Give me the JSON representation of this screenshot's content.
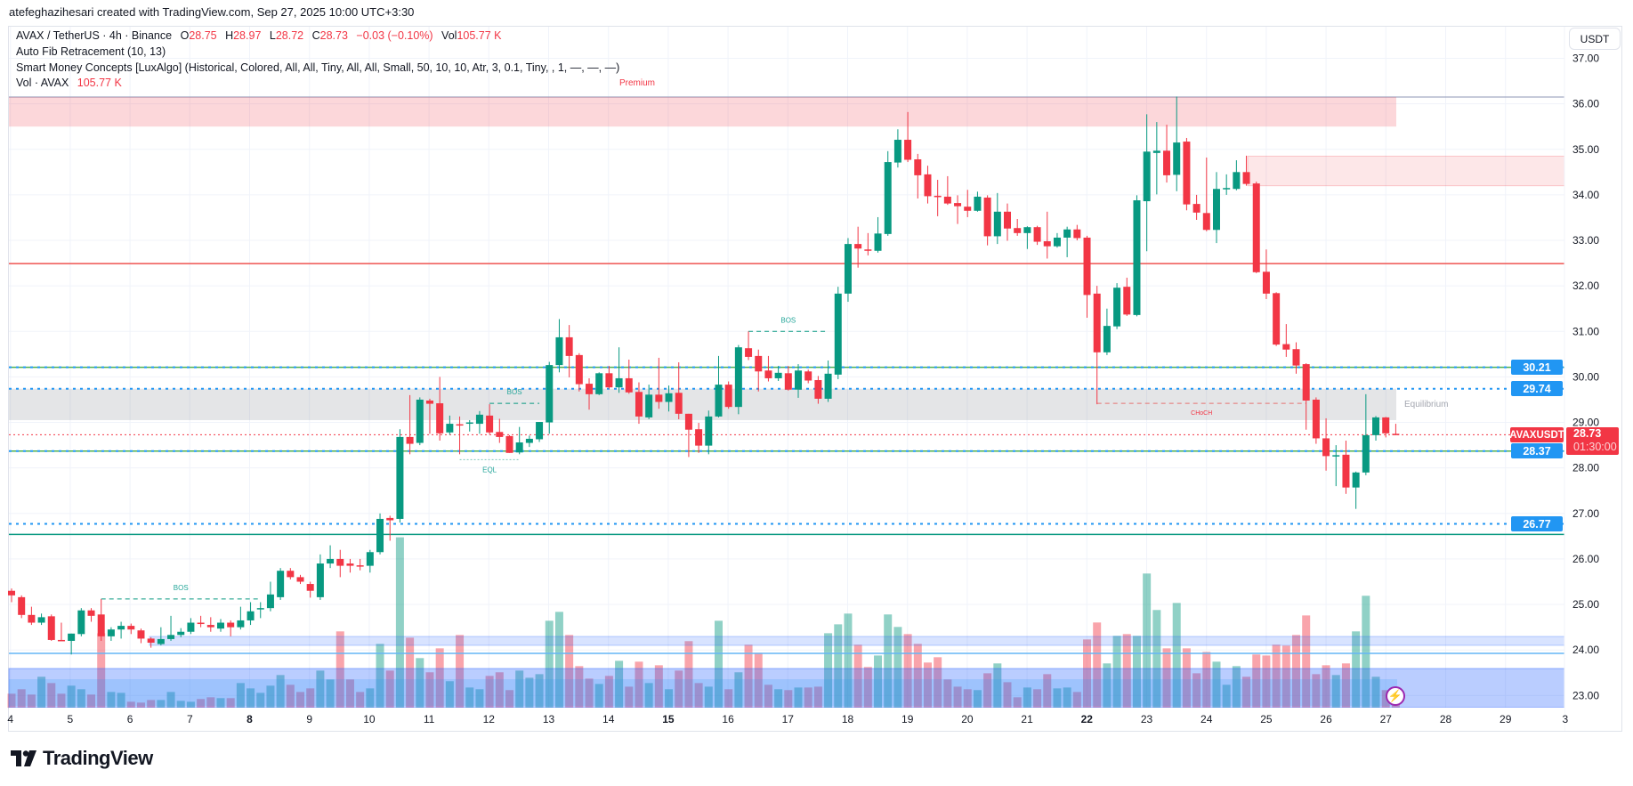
{
  "credit": "atefeghazihesari created with TradingView.com, Sep 27, 2025 10:00 UTC+3:30",
  "legend": {
    "symbol": "AVAX / TetherUS · 4h · Binance",
    "o_label": "O",
    "o": "28.75",
    "h_label": "H",
    "h": "28.97",
    "l_label": "L",
    "l": "28.72",
    "c_label": "C",
    "c": "28.73",
    "change": "−0.03 (−0.10%)",
    "vol_label": "Vol",
    "vol": "105.77 K",
    "fib": "Auto Fib Retracement (10, 13)",
    "smc": "Smart Money Concepts [LuxAlgo] (Historical, Colored, All, All, Tiny, All, All, Small, 50, 10, 10, Atr, 3, 0.1, Tiny, , 1, —, —, —)",
    "vol_study": "Vol · AVAX",
    "vol_study_value": "105.77 K"
  },
  "currency_button": "USDT",
  "price_axis": {
    "ticks": [
      "37.00",
      "36.00",
      "35.00",
      "34.00",
      "33.00",
      "32.00",
      "31.00",
      "30.00",
      "29.00",
      "28.00",
      "27.00",
      "26.00",
      "25.00",
      "24.00",
      "23.00"
    ],
    "tags": [
      {
        "label": "30.21",
        "value": 30.21
      },
      {
        "label": "29.74",
        "value": 29.74
      },
      {
        "label": "28.37",
        "value": 28.37
      },
      {
        "label": "26.77",
        "value": 26.77
      }
    ],
    "current_symbol": "AVAXUSDT",
    "current_price": "28.73",
    "countdown": "01:30:00"
  },
  "time_axis": [
    "4",
    "5",
    "6",
    "7",
    "8",
    "9",
    "10",
    "11",
    "12",
    "13",
    "14",
    "15",
    "16",
    "17",
    "18",
    "19",
    "20",
    "21",
    "22",
    "23",
    "24",
    "25",
    "26",
    "27",
    "28",
    "29",
    "3"
  ],
  "annotations": {
    "premium": "Premium",
    "equilibrium": "Equilibrium",
    "bos": "BOS",
    "eql": "EQL",
    "choch": "CHoCH"
  },
  "levels": {
    "premium_zone": [
      35.5,
      36.15
    ],
    "supply_zone": [
      34.2,
      34.85
    ],
    "equilibrium_zone": [
      29.05,
      29.74
    ],
    "fib_lines": [
      32.49,
      30.21,
      28.37,
      26.54
    ],
    "dotted_lines": [
      30.21,
      29.74,
      28.37,
      26.77
    ],
    "current": 28.73,
    "bos": [
      {
        "price": 25.12,
        "from": 9,
        "to": 25
      },
      {
        "price": 29.42,
        "from": 48,
        "to": 53
      },
      {
        "price": 31.0,
        "from": 74,
        "to": 82
      }
    ],
    "eql": {
      "price": 28.3,
      "from": 45,
      "to": 51
    },
    "choch": {
      "price": 29.42,
      "from": 109,
      "to": 130
    }
  },
  "colors": {
    "up": "#089981",
    "down": "#f23645",
    "tag": "#2196f3",
    "grid": "#f0f3fa"
  },
  "brand": "TradingView",
  "chart_data": {
    "type": "candlestick",
    "title": "AVAX / TetherUS · 4h · Binance",
    "ylim": [
      22.7,
      37.2
    ],
    "x_start": "Sep 4",
    "interval": "4h",
    "candles": [
      [
        25.3,
        25.35,
        25.05,
        25.2
      ],
      [
        25.16,
        25.2,
        24.7,
        24.77
      ],
      [
        24.77,
        24.95,
        24.55,
        24.6
      ],
      [
        24.6,
        24.8,
        24.55,
        24.72
      ],
      [
        24.74,
        24.78,
        24.2,
        24.22
      ],
      [
        24.22,
        24.6,
        24.2,
        24.21
      ],
      [
        24.2,
        24.36,
        23.9,
        24.36
      ],
      [
        24.35,
        24.92,
        24.3,
        24.87
      ],
      [
        24.87,
        24.92,
        24.62,
        24.75
      ],
      [
        24.78,
        25.12,
        24.2,
        24.3
      ],
      [
        24.3,
        24.5,
        24.2,
        24.45
      ],
      [
        24.45,
        24.62,
        24.25,
        24.53
      ],
      [
        24.53,
        24.58,
        24.35,
        24.45
      ],
      [
        24.43,
        24.47,
        24.15,
        24.25
      ],
      [
        24.25,
        24.28,
        24.05,
        24.16
      ],
      [
        24.13,
        24.5,
        24.1,
        24.24
      ],
      [
        24.24,
        24.75,
        24.2,
        24.33
      ],
      [
        24.33,
        24.48,
        24.28,
        24.4
      ],
      [
        24.4,
        24.7,
        24.35,
        24.6
      ],
      [
        24.6,
        24.75,
        24.5,
        24.57
      ],
      [
        24.55,
        24.72,
        24.4,
        24.5
      ],
      [
        24.47,
        24.68,
        24.4,
        24.6
      ],
      [
        24.6,
        24.65,
        24.3,
        24.5
      ],
      [
        24.5,
        24.95,
        24.45,
        24.65
      ],
      [
        24.65,
        25.05,
        24.55,
        24.85
      ],
      [
        24.92,
        25.05,
        24.7,
        24.92
      ],
      [
        24.92,
        25.5,
        24.85,
        25.22
      ],
      [
        25.16,
        25.8,
        25.1,
        25.74
      ],
      [
        25.74,
        25.8,
        25.55,
        25.6
      ],
      [
        25.6,
        25.65,
        25.45,
        25.5
      ],
      [
        25.45,
        25.5,
        25.15,
        25.3
      ],
      [
        25.16,
        26.1,
        25.1,
        25.9
      ],
      [
        25.9,
        26.3,
        25.8,
        26.0
      ],
      [
        26.0,
        26.2,
        25.6,
        25.85
      ],
      [
        25.9,
        26.0,
        25.7,
        25.85
      ],
      [
        25.86,
        26.0,
        25.75,
        25.85
      ],
      [
        25.85,
        26.2,
        25.7,
        26.15
      ],
      [
        26.15,
        27.0,
        26.1,
        26.88
      ],
      [
        26.9,
        26.95,
        26.4,
        26.85
      ],
      [
        26.88,
        28.85,
        26.8,
        28.68
      ],
      [
        28.68,
        29.6,
        28.3,
        28.53
      ],
      [
        28.55,
        29.55,
        28.5,
        29.5
      ],
      [
        29.48,
        29.52,
        28.75,
        29.41
      ],
      [
        29.42,
        30.0,
        28.6,
        28.76
      ],
      [
        28.78,
        29.15,
        28.73,
        28.97
      ],
      [
        28.96,
        29.13,
        28.3,
        28.94
      ],
      [
        28.98,
        29.05,
        28.8,
        29.0
      ],
      [
        28.97,
        29.25,
        28.75,
        29.17
      ],
      [
        29.15,
        29.4,
        28.74,
        28.78
      ],
      [
        28.79,
        29.08,
        28.55,
        28.68
      ],
      [
        28.7,
        28.72,
        28.33,
        28.33
      ],
      [
        28.34,
        28.9,
        28.3,
        28.56
      ],
      [
        28.55,
        28.71,
        28.46,
        28.64
      ],
      [
        28.63,
        29.01,
        28.57,
        29.01
      ],
      [
        29.0,
        30.33,
        28.75,
        30.26
      ],
      [
        30.26,
        31.27,
        30.1,
        30.87
      ],
      [
        30.87,
        31.14,
        29.99,
        30.46
      ],
      [
        30.48,
        30.52,
        29.68,
        29.84
      ],
      [
        29.85,
        29.97,
        29.28,
        29.62
      ],
      [
        29.62,
        30.1,
        29.6,
        30.08
      ],
      [
        30.08,
        30.24,
        29.74,
        29.77
      ],
      [
        29.77,
        30.65,
        29.65,
        29.97
      ],
      [
        29.97,
        30.38,
        29.63,
        29.66
      ],
      [
        29.67,
        29.88,
        28.97,
        29.13
      ],
      [
        29.11,
        29.83,
        29.07,
        29.61
      ],
      [
        29.61,
        30.42,
        29.3,
        29.45
      ],
      [
        29.45,
        29.81,
        29.24,
        29.64
      ],
      [
        29.65,
        30.32,
        29.07,
        29.19
      ],
      [
        29.19,
        29.19,
        28.24,
        28.84
      ],
      [
        28.85,
        28.99,
        28.33,
        28.49
      ],
      [
        28.49,
        29.26,
        28.3,
        29.13
      ],
      [
        29.13,
        30.46,
        29.11,
        29.83
      ],
      [
        29.83,
        29.9,
        29.3,
        29.34
      ],
      [
        29.34,
        30.7,
        29.18,
        30.65
      ],
      [
        30.63,
        31.0,
        30.37,
        30.44
      ],
      [
        30.46,
        30.6,
        29.68,
        30.12
      ],
      [
        30.14,
        30.46,
        29.9,
        29.97
      ],
      [
        29.97,
        30.24,
        29.91,
        30.09
      ],
      [
        30.08,
        30.24,
        29.7,
        29.72
      ],
      [
        29.72,
        30.28,
        29.54,
        30.14
      ],
      [
        30.12,
        30.16,
        29.86,
        29.92
      ],
      [
        29.93,
        30.02,
        29.41,
        29.52
      ],
      [
        29.52,
        30.36,
        29.45,
        30.07
      ],
      [
        30.05,
        31.98,
        29.95,
        31.83
      ],
      [
        31.83,
        33.05,
        31.65,
        32.92
      ],
      [
        32.92,
        33.3,
        32.4,
        32.82
      ],
      [
        32.8,
        33.16,
        32.67,
        32.77
      ],
      [
        32.77,
        33.51,
        32.73,
        33.15
      ],
      [
        33.14,
        34.96,
        33.1,
        34.72
      ],
      [
        34.71,
        35.44,
        34.6,
        35.21
      ],
      [
        35.21,
        35.82,
        34.72,
        34.77
      ],
      [
        34.78,
        34.9,
        33.92,
        34.43
      ],
      [
        34.45,
        34.64,
        33.81,
        33.97
      ],
      [
        33.98,
        34.33,
        33.53,
        33.95
      ],
      [
        33.96,
        34.41,
        33.78,
        33.81
      ],
      [
        33.82,
        33.99,
        33.36,
        33.75
      ],
      [
        33.74,
        34.11,
        33.51,
        33.65
      ],
      [
        33.65,
        34.07,
        33.63,
        33.96
      ],
      [
        33.94,
        33.99,
        32.89,
        33.09
      ],
      [
        33.09,
        34.04,
        32.92,
        33.63
      ],
      [
        33.63,
        33.81,
        32.99,
        33.26
      ],
      [
        33.27,
        33.47,
        33.1,
        33.16
      ],
      [
        33.16,
        33.31,
        32.81,
        33.29
      ],
      [
        33.29,
        33.32,
        32.9,
        32.97
      ],
      [
        32.98,
        33.63,
        32.6,
        32.87
      ],
      [
        32.87,
        33.16,
        32.84,
        33.06
      ],
      [
        33.06,
        33.3,
        32.63,
        33.24
      ],
      [
        33.24,
        33.34,
        33.0,
        33.05
      ],
      [
        33.06,
        33.1,
        31.3,
        31.8
      ],
      [
        31.83,
        32.0,
        29.4,
        30.54
      ],
      [
        30.54,
        31.5,
        30.48,
        31.12
      ],
      [
        31.11,
        32.06,
        31.05,
        31.96
      ],
      [
        31.98,
        32.18,
        31.34,
        31.37
      ],
      [
        31.36,
        33.99,
        31.33,
        33.88
      ],
      [
        33.86,
        35.77,
        32.76,
        34.95
      ],
      [
        34.92,
        35.6,
        34.01,
        34.97
      ],
      [
        34.97,
        35.54,
        34.27,
        34.43
      ],
      [
        34.44,
        36.16,
        34.08,
        35.15
      ],
      [
        35.17,
        35.25,
        33.66,
        33.79
      ],
      [
        33.8,
        34.0,
        33.45,
        33.61
      ],
      [
        33.6,
        34.82,
        33.2,
        33.23
      ],
      [
        33.23,
        34.5,
        32.94,
        34.13
      ],
      [
        34.13,
        34.45,
        34.0,
        34.15
      ],
      [
        34.13,
        34.76,
        34.1,
        34.5
      ],
      [
        34.5,
        34.86,
        34.2,
        34.24
      ],
      [
        34.25,
        34.29,
        32.28,
        32.3
      ],
      [
        32.31,
        32.8,
        31.71,
        31.83
      ],
      [
        31.84,
        31.86,
        30.68,
        30.71
      ],
      [
        30.72,
        31.16,
        30.44,
        30.6
      ],
      [
        30.61,
        30.76,
        30.07,
        30.25
      ],
      [
        30.28,
        30.3,
        28.84,
        29.48
      ],
      [
        29.5,
        29.55,
        28.53,
        28.65
      ],
      [
        28.65,
        29.09,
        27.94,
        28.26
      ],
      [
        28.27,
        28.5,
        27.6,
        28.28
      ],
      [
        28.29,
        28.6,
        27.43,
        27.57
      ],
      [
        27.57,
        27.92,
        27.1,
        27.9
      ],
      [
        27.9,
        29.62,
        27.84,
        28.72
      ],
      [
        28.72,
        29.14,
        28.6,
        29.11
      ],
      [
        29.11,
        29.12,
        28.67,
        28.76
      ],
      [
        28.75,
        28.97,
        28.72,
        28.73
      ]
    ],
    "volume_k": [
      113,
      149,
      106,
      250,
      199,
      113,
      178,
      149,
      106,
      602,
      127,
      120,
      48,
      41,
      62,
      62,
      127,
      55,
      48,
      70,
      84,
      77,
      77,
      199,
      156,
      120,
      178,
      264,
      185,
      127,
      156,
      300,
      228,
      617,
      228,
      127,
      156,
      516,
      300,
      1378,
      566,
      401,
      286,
      480,
      214,
      588,
      163,
      149,
      257,
      286,
      142,
      300,
      242,
      271,
      703,
      775,
      588,
      336,
      235,
      192,
      257,
      379,
      170,
      372,
      199,
      343,
      149,
      300,
      538,
      199,
      170,
      703,
      149,
      286,
      509,
      444,
      185,
      149,
      142,
      163,
      163,
      170,
      602,
      674,
      761,
      509,
      329,
      422,
      754,
      653,
      595,
      516,
      365,
      408,
      228,
      170,
      149,
      142,
      278,
      358,
      206,
      84,
      163,
      149,
      271,
      156,
      163,
      127,
      552,
      689,
      358,
      581,
      595,
      581,
      1085,
      790,
      480,
      847,
      480,
      278,
      451,
      372,
      185,
      336,
      250,
      430,
      422,
      509,
      502,
      588,
      746,
      271,
      343,
      264,
      358,
      617,
      905,
      250,
      142,
      105.77
    ]
  }
}
